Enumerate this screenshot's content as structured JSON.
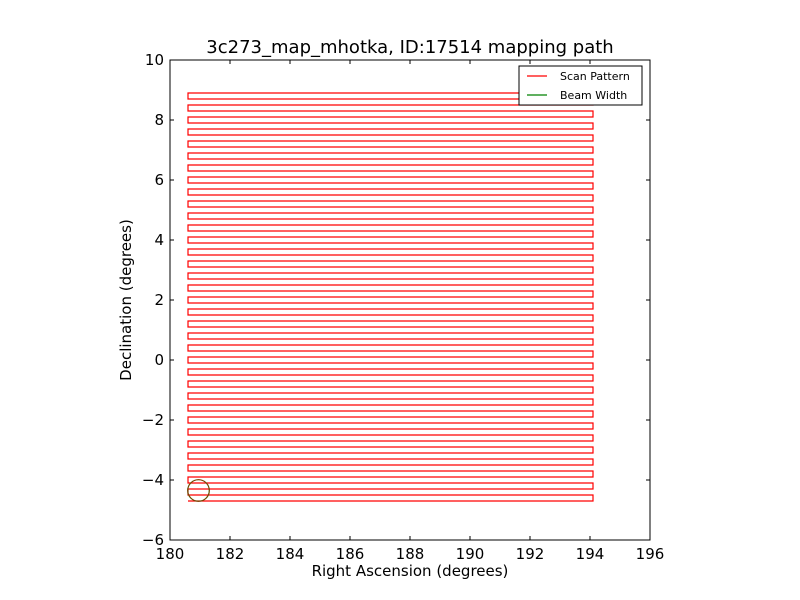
{
  "chart_data": {
    "type": "line",
    "title": "3c273_map_mhotka, ID:17514 mapping path",
    "xlabel": "Right Ascension (degrees)",
    "ylabel": "Declination (degrees)",
    "xlim": [
      180,
      196
    ],
    "ylim": [
      -6,
      10
    ],
    "xticks": [
      "180",
      "182",
      "184",
      "186",
      "188",
      "190",
      "192",
      "194",
      "196"
    ],
    "yticks": [
      "−6",
      "−4",
      "−2",
      "0",
      "2",
      "4",
      "6",
      "8",
      "10"
    ],
    "grid": false,
    "legend_position": "top-right",
    "series": [
      {
        "name": "Scan Pattern",
        "color": "#ff0000",
        "pattern": "raster",
        "ra_min": 180.6,
        "ra_max": 194.1,
        "dec_start": -4.7,
        "dec_end": 8.8,
        "row_spacing": 0.2
      },
      {
        "name": "Beam Width",
        "color": "#008000",
        "shape": "circle",
        "center_ra": 180.95,
        "center_dec": -4.35,
        "radius_deg": 0.36
      }
    ]
  }
}
